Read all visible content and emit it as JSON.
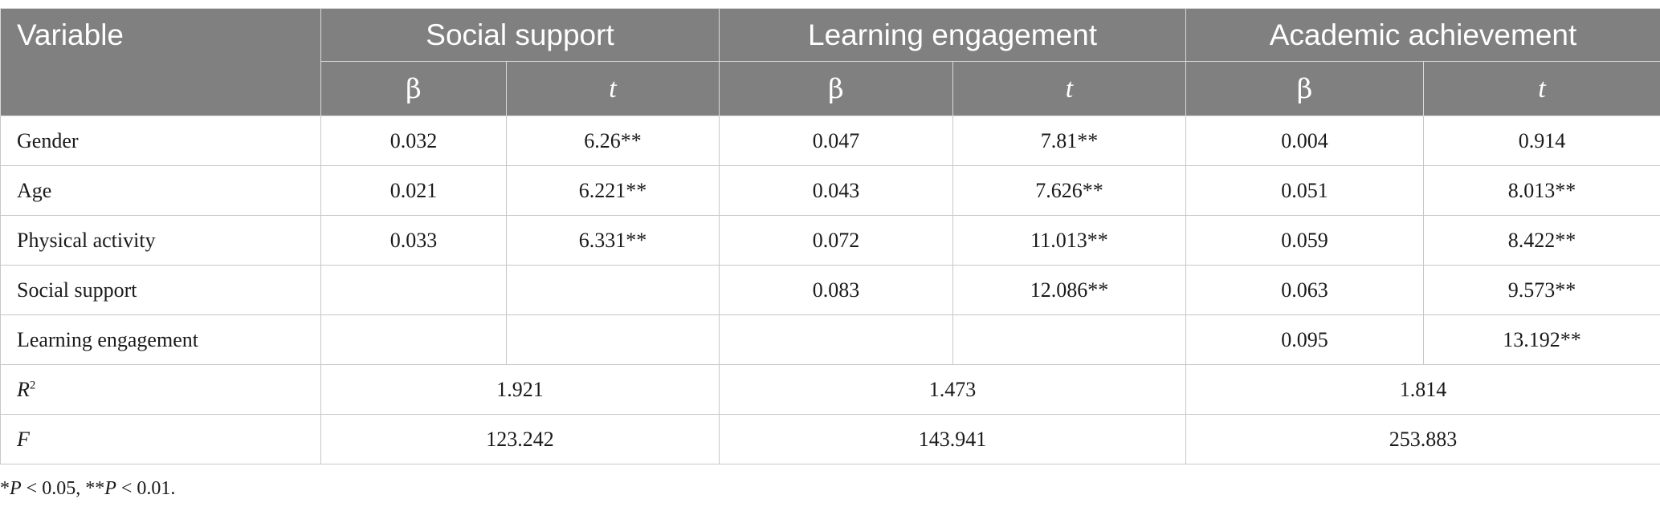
{
  "table": {
    "header": {
      "variable": "Variable",
      "groups": [
        "Social support",
        "Learning engagement",
        "Academic achievement"
      ],
      "beta": "β",
      "t": "t"
    },
    "rows": [
      {
        "label": "Gender",
        "ss_beta": "0.032",
        "ss_t": "6.26**",
        "le_beta": "0.047",
        "le_t": "7.81**",
        "aa_beta": "0.004",
        "aa_t": "0.914"
      },
      {
        "label": "Age",
        "ss_beta": "0.021",
        "ss_t": "6.221**",
        "le_beta": "0.043",
        "le_t": "7.626**",
        "aa_beta": "0.051",
        "aa_t": "8.013**"
      },
      {
        "label": "Physical activity",
        "ss_beta": "0.033",
        "ss_t": "6.331**",
        "le_beta": "0.072",
        "le_t": "11.013**",
        "aa_beta": "0.059",
        "aa_t": "8.422**"
      },
      {
        "label": "Social support",
        "ss_beta": "",
        "ss_t": "",
        "le_beta": "0.083",
        "le_t": "12.086**",
        "aa_beta": "0.063",
        "aa_t": "9.573**"
      },
      {
        "label": "Learning engagement",
        "ss_beta": "",
        "ss_t": "",
        "le_beta": "",
        "le_t": "",
        "aa_beta": "0.095",
        "aa_t": "13.192**"
      }
    ],
    "r2": {
      "label": "R",
      "sup": "2",
      "values": [
        "1.921",
        "1.473",
        "1.814"
      ]
    },
    "f": {
      "label": "F",
      "values": [
        "123.242",
        "143.941",
        "253.883"
      ]
    }
  },
  "note": {
    "s1": "*",
    "p1": "P",
    "t1": " < 0.05, **",
    "p2": "P",
    "t2": " < 0.01."
  }
}
